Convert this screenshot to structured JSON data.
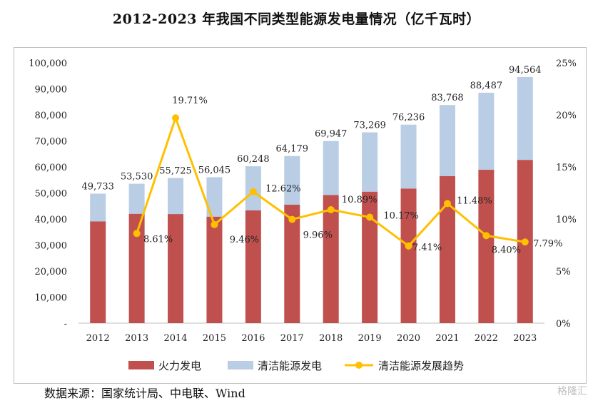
{
  "title": "2012-2023 年我国不同类型能源发电量情况（亿千瓦时）",
  "source": "数据来源：国家统计局、中电联、Wind",
  "watermark": "格隆汇",
  "colors": {
    "thermal": "#C0504D",
    "clean": "#B9CDE5",
    "trend": "#FFC000"
  },
  "chart_data": {
    "type": "bar",
    "stacked": true,
    "title": "2012-2023 年我国不同类型能源发电量情况（亿千瓦时）",
    "categories": [
      "2012",
      "2013",
      "2014",
      "2015",
      "2016",
      "2017",
      "2018",
      "2019",
      "2020",
      "2021",
      "2022",
      "2023"
    ],
    "totals": [
      49733,
      53530,
      55725,
      56045,
      60248,
      64179,
      69947,
      73269,
      76236,
      83768,
      88487,
      94564
    ],
    "total_labels": [
      "49,733",
      "53,530",
      "55,725",
      "56,045",
      "60,248",
      "64,179",
      "69,947",
      "73,269",
      "76,236",
      "83,768",
      "88,487",
      "94,564"
    ],
    "series": [
      {
        "name": "火力发电",
        "type": "bar",
        "axis": "left",
        "values": [
          39100,
          42000,
          41900,
          40900,
          43300,
          45500,
          49200,
          50500,
          51700,
          56500,
          58900,
          62700
        ]
      },
      {
        "name": "清洁能源发电",
        "type": "bar",
        "axis": "left",
        "values": [
          10633,
          11530,
          13825,
          15145,
          16948,
          18679,
          20747,
          22769,
          24536,
          27268,
          29587,
          31864
        ]
      },
      {
        "name": "清洁能源发展趋势",
        "type": "line",
        "axis": "right",
        "values": [
          null,
          8.61,
          19.71,
          9.46,
          12.62,
          9.96,
          10.89,
          10.17,
          7.41,
          11.48,
          8.4,
          7.79
        ],
        "labels": [
          "",
          "8.61%",
          "19.71%",
          "9.46%",
          "12.62%",
          "9.96%",
          "10.89%",
          "10.17%",
          "7.41%",
          "11.48%",
          "8.40%",
          "7.79%"
        ]
      }
    ],
    "y_left": {
      "min": 0,
      "max": 100000,
      "ticks": [
        "-",
        "10,000",
        "20,000",
        "30,000",
        "40,000",
        "50,000",
        "60,000",
        "70,000",
        "80,000",
        "90,000",
        "100,000"
      ]
    },
    "y_right": {
      "min": 0,
      "max": 25,
      "ticks": [
        "0%",
        "5%",
        "10%",
        "15%",
        "20%",
        "25%"
      ]
    },
    "legend": [
      "火力发电",
      "清洁能源发电",
      "清洁能源发展趋势"
    ],
    "legend_position": "bottom",
    "grid": false
  }
}
